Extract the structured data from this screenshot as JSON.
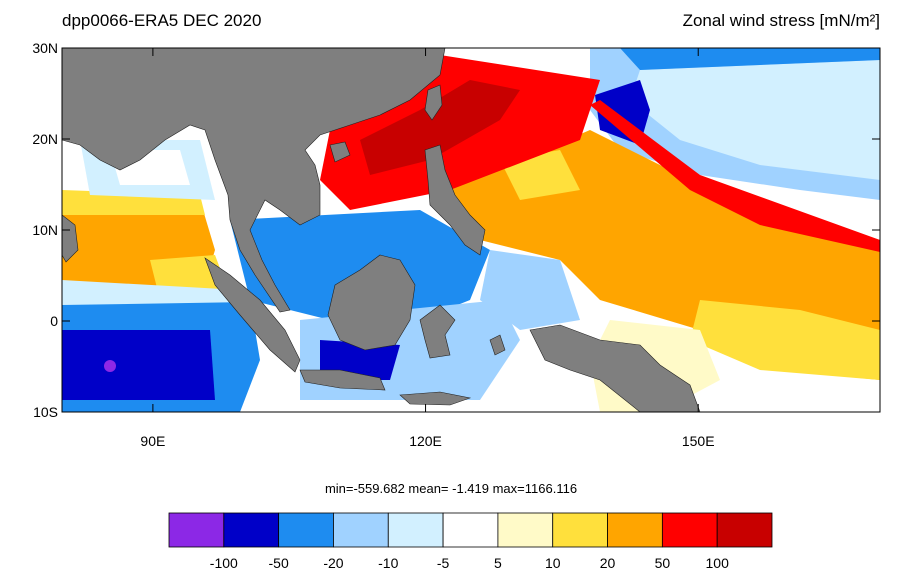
{
  "title": "dpp0066-ERA5  DEC 2020",
  "variable": "Zonal wind stress [mN/m²]",
  "map": {
    "lonlim": [
      80,
      170
    ],
    "latlim": [
      -10,
      30
    ],
    "lonticks": [
      {
        "value": 90,
        "label": "90E"
      },
      {
        "value": 120,
        "label": "120E"
      },
      {
        "value": 150,
        "label": "150E"
      }
    ],
    "latticks": [
      {
        "value": 30,
        "label": "30N"
      },
      {
        "value": 20,
        "label": "20N"
      },
      {
        "value": 10,
        "label": "10N"
      },
      {
        "value": 0,
        "label": "0"
      },
      {
        "value": -10,
        "label": "10S"
      }
    ]
  },
  "stats": "min=-559.682  mean=  -1.419  max=1166.116",
  "colorbar": {
    "levels": [
      -100,
      -50,
      -20,
      -10,
      -5,
      5,
      10,
      20,
      50,
      100
    ],
    "colors": [
      "#8c28e6",
      "#0000c8",
      "#1e8cf0",
      "#a0d2ff",
      "#d2f0ff",
      "#ffffff",
      "#fffac8",
      "#ffe03c",
      "#ffa500",
      "#ff0000",
      "#c80000"
    ]
  }
}
